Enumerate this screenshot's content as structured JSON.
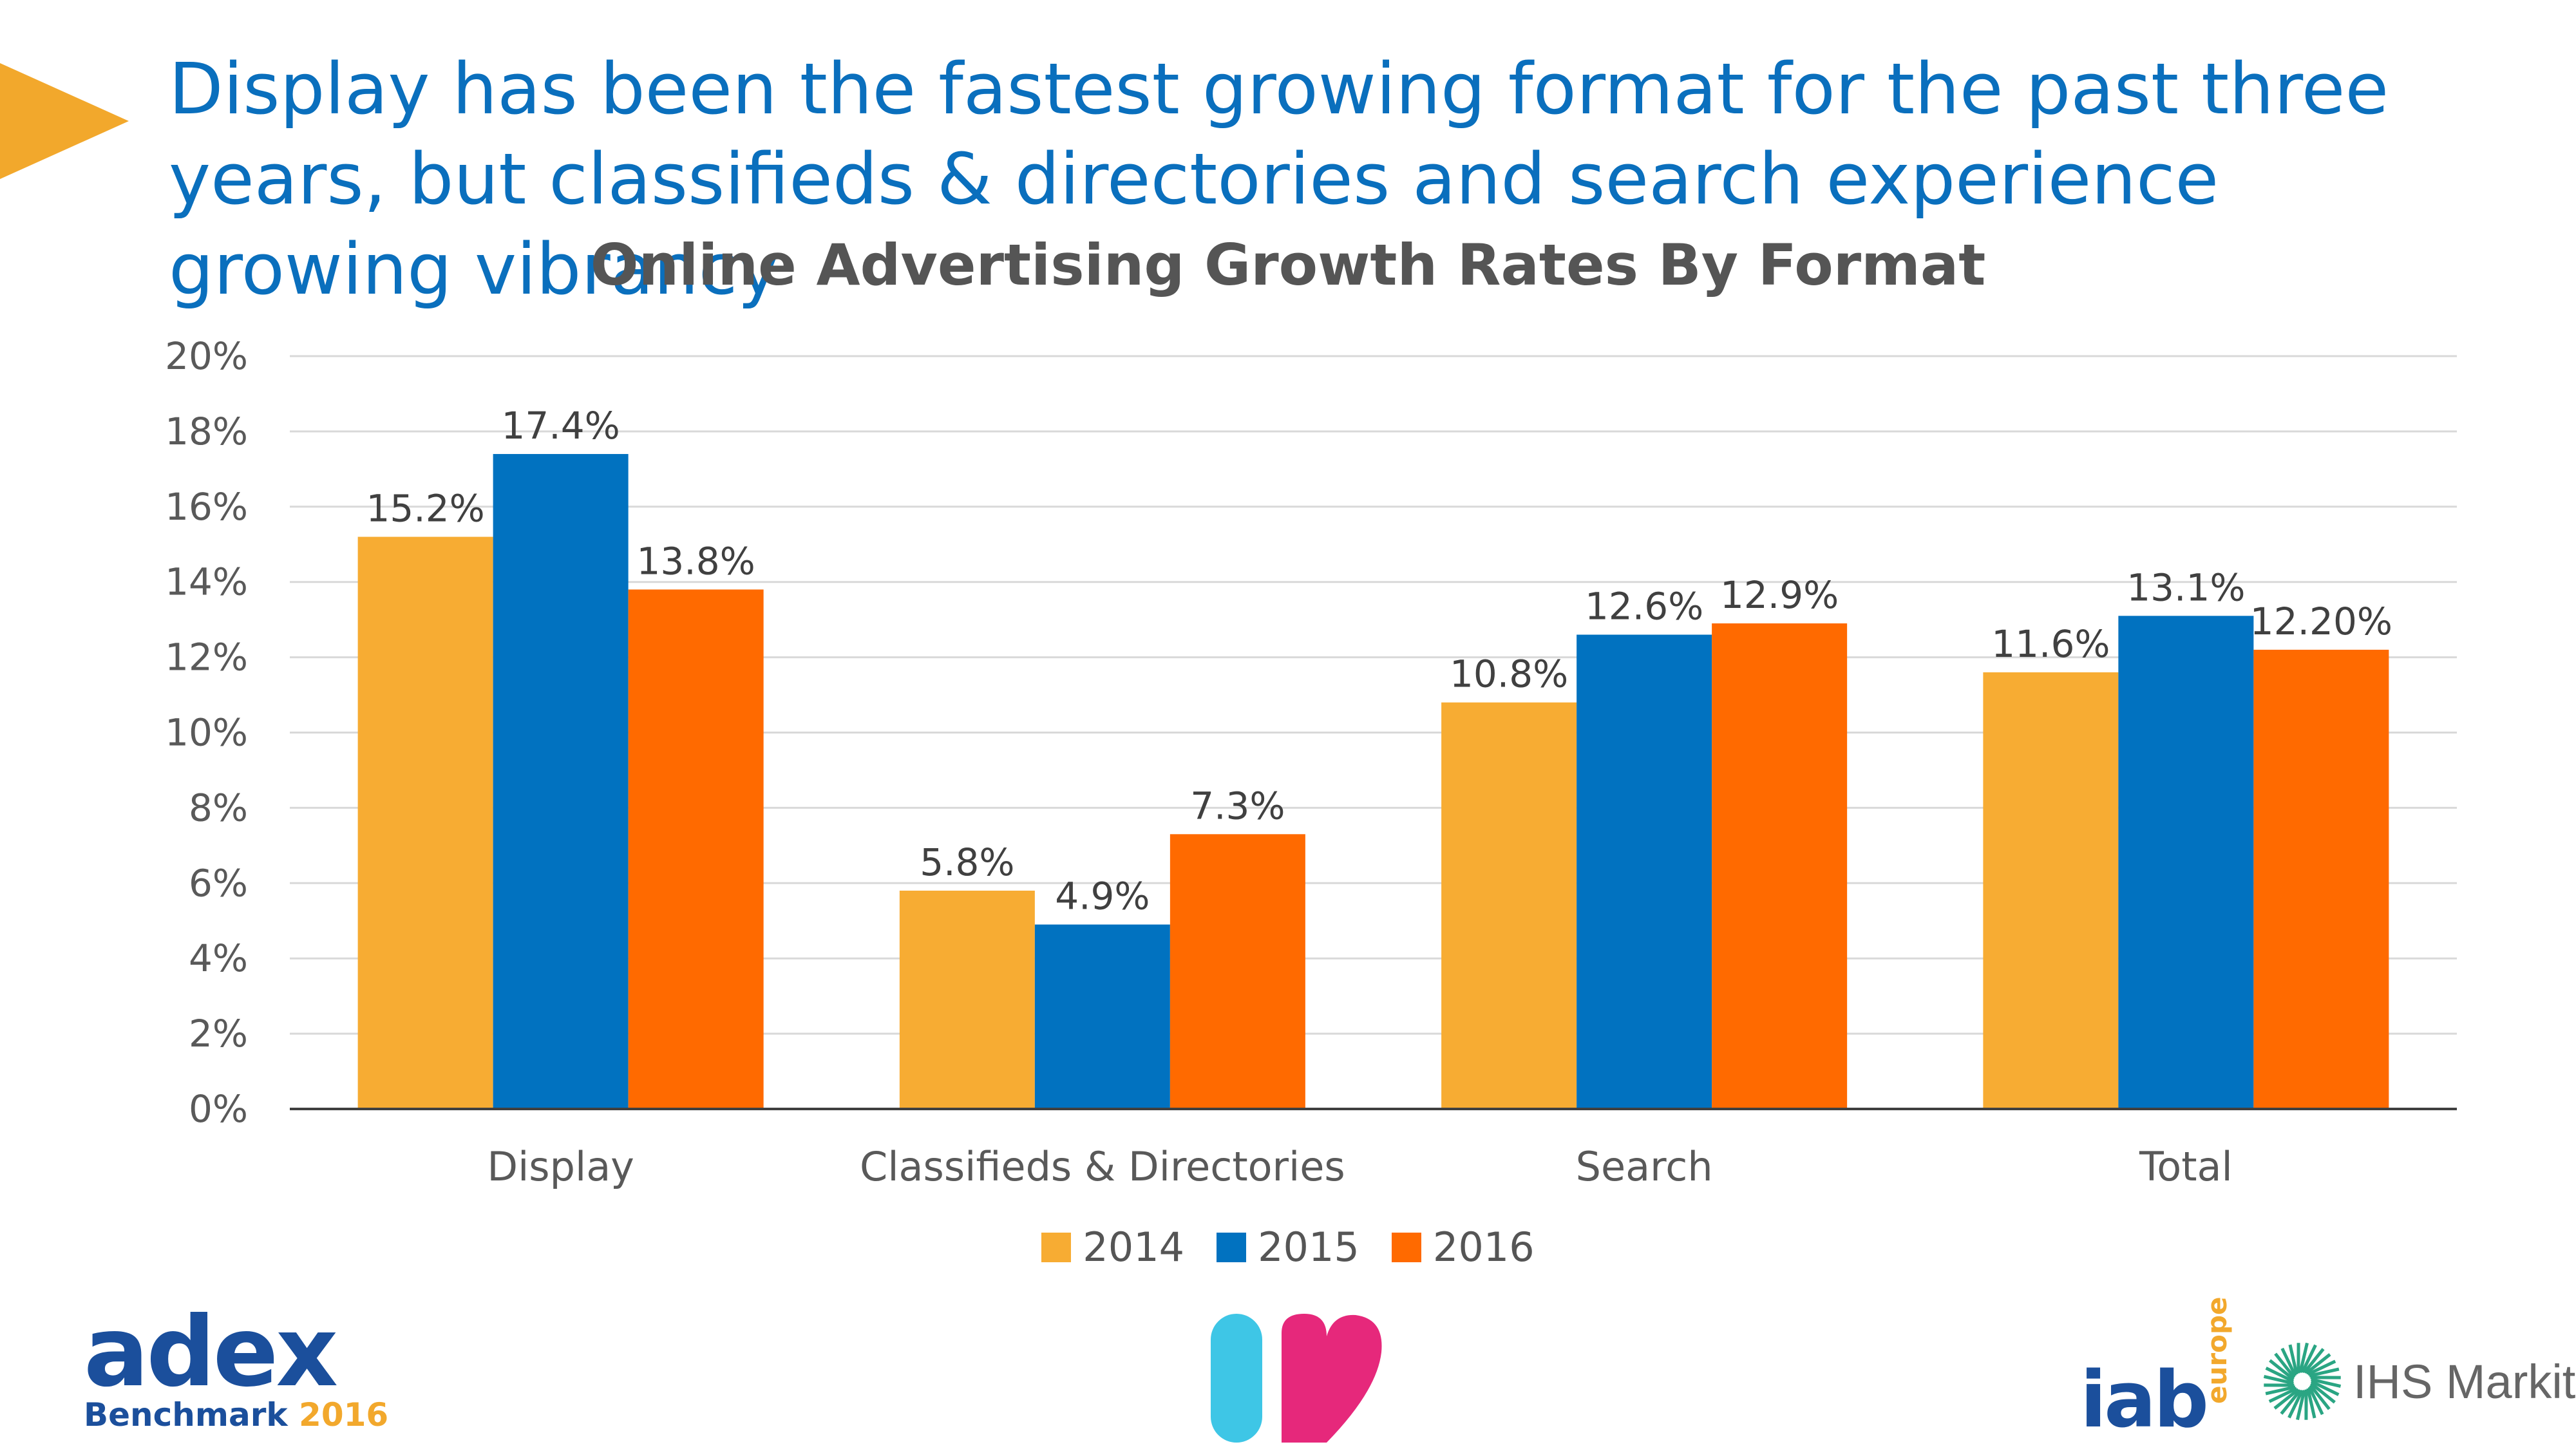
{
  "headline": "Display has been the fastest growing format for the past three years, but classifieds & directories and search experience growing vibrancy",
  "chart_data": {
    "type": "bar",
    "title": "Online Advertising Growth Rates By Format",
    "categories": [
      "Display",
      "Classifieds & Directories",
      "Search",
      "Total"
    ],
    "series": [
      {
        "name": "2014",
        "color": "#f7ac33",
        "values": [
          15.2,
          5.8,
          10.8,
          11.6
        ],
        "labels": [
          "15.2%",
          "5.8%",
          "10.8%",
          "11.6%"
        ]
      },
      {
        "name": "2015",
        "color": "#0172c0",
        "values": [
          17.4,
          4.9,
          12.6,
          13.1
        ],
        "labels": [
          "17.4%",
          "4.9%",
          "12.6%",
          "13.1%"
        ]
      },
      {
        "name": "2016",
        "color": "#ff6a00",
        "values": [
          13.8,
          7.3,
          12.9,
          12.2
        ],
        "labels": [
          "13.8%",
          "7.3%",
          "12.9%",
          "12.20%"
        ]
      }
    ],
    "ylim": [
      0,
      20
    ],
    "yticks": [
      "0%",
      "2%",
      "4%",
      "6%",
      "8%",
      "10%",
      "12%",
      "14%",
      "16%",
      "18%",
      "20%"
    ],
    "grid": true,
    "legend": "bottom-center"
  },
  "logos": {
    "adex_word": "adex",
    "adex_sub": "Benchmark",
    "adex_year": "2016",
    "iab_word": "iab",
    "iab_suffix": "europe",
    "ihs_text": "IHS Markit"
  }
}
